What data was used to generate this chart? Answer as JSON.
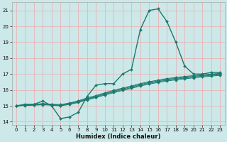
{
  "title": "",
  "xlabel": "Humidex (Indice chaleur)",
  "ylabel": "",
  "xlim": [
    -0.5,
    23.5
  ],
  "ylim": [
    13.8,
    21.5
  ],
  "xticks": [
    0,
    1,
    2,
    3,
    4,
    5,
    6,
    7,
    8,
    9,
    10,
    11,
    12,
    13,
    14,
    15,
    16,
    17,
    18,
    19,
    20,
    21,
    22,
    23
  ],
  "yticks": [
    14,
    15,
    16,
    17,
    18,
    19,
    20,
    21
  ],
  "bg_color": "#cce8e8",
  "line_color": "#1a7a6e",
  "grid_color": "#e8b4b8",
  "lines": [
    {
      "x": [
        0,
        1,
        2,
        3,
        4,
        5,
        6,
        7,
        8,
        9,
        10,
        11,
        12,
        13,
        14,
        15,
        16,
        17,
        18,
        19,
        20,
        21,
        22,
        23
      ],
      "y": [
        15.0,
        15.1,
        15.1,
        15.3,
        15.0,
        14.2,
        14.3,
        14.6,
        15.6,
        16.3,
        16.4,
        16.4,
        17.0,
        17.3,
        19.8,
        21.0,
        21.1,
        20.3,
        19.0,
        17.5,
        17.0,
        17.0,
        17.1,
        17.1
      ]
    },
    {
      "x": [
        0,
        1,
        2,
        3,
        4,
        5,
        6,
        7,
        8,
        9,
        10,
        11,
        12,
        13,
        14,
        15,
        16,
        17,
        18,
        19,
        20,
        21,
        22,
        23
      ],
      "y": [
        15.0,
        15.05,
        15.08,
        15.15,
        15.1,
        15.08,
        15.18,
        15.32,
        15.5,
        15.65,
        15.82,
        15.98,
        16.12,
        16.25,
        16.4,
        16.52,
        16.62,
        16.72,
        16.78,
        16.85,
        16.9,
        16.95,
        17.0,
        17.05
      ]
    },
    {
      "x": [
        0,
        1,
        2,
        3,
        4,
        5,
        6,
        7,
        8,
        9,
        10,
        11,
        12,
        13,
        14,
        15,
        16,
        17,
        18,
        19,
        20,
        21,
        22,
        23
      ],
      "y": [
        15.0,
        15.05,
        15.08,
        15.12,
        15.08,
        15.05,
        15.15,
        15.28,
        15.45,
        15.6,
        15.78,
        15.93,
        16.07,
        16.2,
        16.35,
        16.47,
        16.57,
        16.67,
        16.73,
        16.8,
        16.86,
        16.91,
        16.96,
        17.01
      ]
    },
    {
      "x": [
        0,
        1,
        2,
        3,
        4,
        5,
        6,
        7,
        8,
        9,
        10,
        11,
        12,
        13,
        14,
        15,
        16,
        17,
        18,
        19,
        20,
        21,
        22,
        23
      ],
      "y": [
        15.0,
        15.04,
        15.06,
        15.1,
        15.06,
        15.02,
        15.12,
        15.25,
        15.42,
        15.56,
        15.73,
        15.88,
        16.02,
        16.15,
        16.3,
        16.42,
        16.52,
        16.62,
        16.68,
        16.75,
        16.81,
        16.87,
        16.92,
        16.97
      ]
    },
    {
      "x": [
        0,
        1,
        2,
        3,
        4,
        5,
        6,
        7,
        8,
        9,
        10,
        11,
        12,
        13,
        14,
        15,
        16,
        17,
        18,
        19,
        20,
        21,
        22,
        23
      ],
      "y": [
        15.0,
        15.02,
        15.04,
        15.07,
        15.04,
        15.0,
        15.09,
        15.21,
        15.38,
        15.52,
        15.68,
        15.83,
        15.97,
        16.1,
        16.25,
        16.37,
        16.47,
        16.57,
        16.63,
        16.7,
        16.76,
        16.82,
        16.87,
        16.92
      ]
    }
  ]
}
